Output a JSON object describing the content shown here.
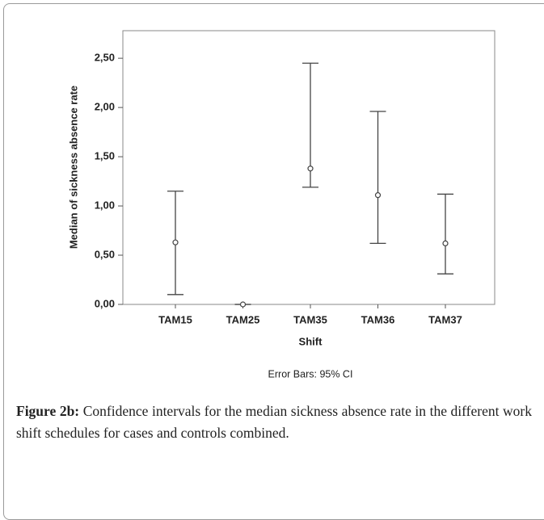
{
  "chart_data": {
    "type": "errorbar",
    "x_label": "Shift",
    "y_label": "Median of sickness absence rate",
    "note": "Error Bars: 95% CI",
    "categories": [
      "TAM15",
      "TAM25",
      "TAM35",
      "TAM36",
      "TAM37"
    ],
    "values": [
      0.63,
      0.0,
      1.38,
      1.11,
      0.62
    ],
    "lower": [
      0.1,
      0.0,
      1.19,
      0.62,
      0.31
    ],
    "upper": [
      1.15,
      0.0,
      2.45,
      1.96,
      1.12
    ],
    "color": "#444444",
    "ylim": [
      0,
      2.78
    ],
    "yticks": [
      {
        "value": 0,
        "label": "0,00"
      },
      {
        "value": 0.5,
        "label": "0,50"
      },
      {
        "value": 1.0,
        "label": "1,00"
      },
      {
        "value": 1.5,
        "label": "1,50"
      },
      {
        "value": 2.0,
        "label": "2,00"
      },
      {
        "value": 2.5,
        "label": "2,50"
      }
    ]
  },
  "caption": {
    "label": "Figure 2b:",
    "text": "Confidence intervals for the median sickness absence rate in the different work shift schedules for cases and controls combined."
  }
}
